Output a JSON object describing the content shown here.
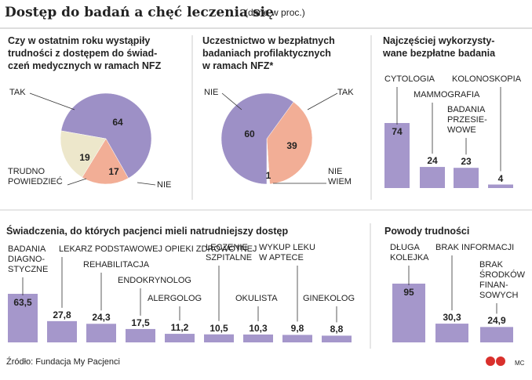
{
  "title": "Dostęp do badań a chęć leczenia się",
  "subtitle": "(dane w proc.)",
  "source": "Źródło: Fundacja My Pacjenci",
  "credit": "MC",
  "chart_data": [
    {
      "type": "pie",
      "title": "Czy w ostatnim roku wystąpiły\ntrudności z dostępem do świad-\nczeń medycznych w ramach NFZ",
      "categories": [
        "TAK",
        "NIE",
        "TRUDNO\nPOWIEDZIEĆ"
      ],
      "values": [
        64,
        17,
        19
      ],
      "colors": [
        "#9d90c6",
        "#f2ae96",
        "#ede7cb"
      ]
    },
    {
      "type": "pie",
      "title": "Uczestnictwo w bezpłatnych\nbadaniach profilaktycznych\nw ramach NFZ*",
      "categories": [
        "TAK",
        "NIE\nWIEM",
        "NIE"
      ],
      "values": [
        39,
        1,
        60
      ],
      "colors": [
        "#f2ae96",
        "#ffffff",
        "#9d90c6"
      ]
    },
    {
      "type": "bar",
      "title": "Najczęściej wykorzysty-\nwane bezpłatne badania",
      "categories": [
        "CYTOLOGIA",
        "MAMMOGRAFIA",
        "BADANIA\nPRZESIE-\nWOWE",
        "KOLONOSKOPIA"
      ],
      "values": [
        74,
        24,
        23,
        4
      ],
      "color": "#a597cb"
    },
    {
      "type": "bar",
      "title": "Świadczenia, do których pacjenci mieli natrudniejszy dostęp",
      "categories": [
        "BADANIA\nDIAGNO-\nSTYCZNE",
        "LEKARZ PODSTAWOWEJ OPIEKI ZDROWOTNEJ",
        "REHABILITACJA",
        "ENDOKRYNOLOG",
        "ALERGOLOG",
        "LECZENIE\nSZPITALNE",
        "OKULISTA",
        "WYKUP LEKU\nW APTECE",
        "GINEKOLOG"
      ],
      "values": [
        63.5,
        27.8,
        24.3,
        17.5,
        11.2,
        10.5,
        10.3,
        9.8,
        8.8
      ],
      "value_labels": [
        "63,5",
        "27,8",
        "24,3",
        "17,5",
        "11,2",
        "10,5",
        "10,3",
        "9,8",
        "8,8"
      ],
      "color": "#a597cb"
    },
    {
      "type": "bar",
      "title": "Powody trudności",
      "categories": [
        "DŁUGA\nKOLEJKA",
        "BRAK INFORMACJI",
        "BRAK\nŚRODKÓW\nFINAN-\nSOWYCH"
      ],
      "values": [
        95,
        30.3,
        24.9
      ],
      "value_labels": [
        "95",
        "30,3",
        "24,9"
      ],
      "color": "#a597cb"
    }
  ]
}
